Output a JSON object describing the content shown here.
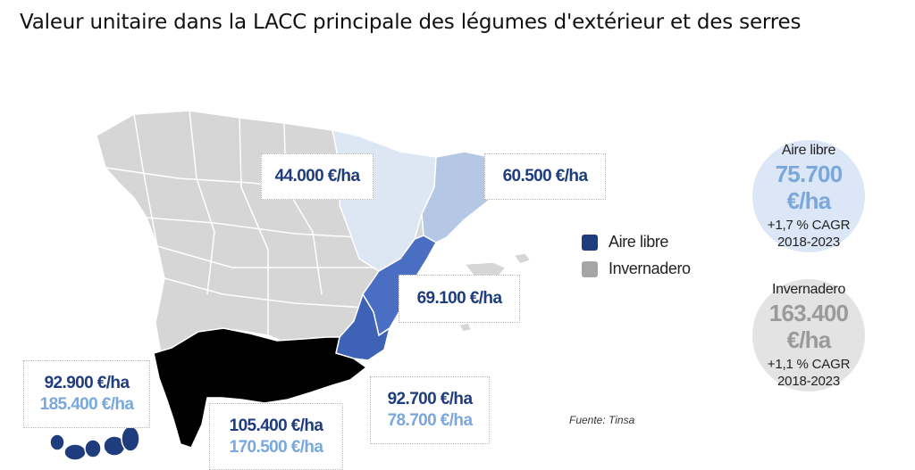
{
  "title": "Valeur unitaire dans la LACC principale des légumes d'extérieur et des serres",
  "colors": {
    "region_default": "#d6d6d6",
    "region_border": "#ffffff",
    "aragon": "#dde6f3",
    "catalonia": "#b4c8e6",
    "valencia": "#4a6fc2",
    "murcia": "#3d62b6",
    "andalusia": "#000000",
    "canary_islands": "#1f3c7c",
    "aire_libre": "#1f3c7c",
    "invernadero": "#a5a5a5",
    "value_dark": "#1f3c7c",
    "value_light": "#7aa7dc",
    "circle_aire_bg": "#dbe6f6",
    "circle_inv_bg": "#e3e3e3",
    "circle_aire_value": "#7aa7dc",
    "circle_inv_value": "#9a9a9a"
  },
  "labels": {
    "aragon": {
      "value": "44.000 €/ha"
    },
    "catalonia": {
      "value": "60.500 €/ha"
    },
    "valencia": {
      "value": "69.100 €/ha"
    },
    "murcia": {
      "aire_libre": "92.700 €/ha",
      "invernadero": "78.700 €/ha"
    },
    "andalusia": {
      "aire_libre": "105.400 €/ha",
      "invernadero": "170.500 €/ha"
    },
    "canarias": {
      "aire_libre": "92.900 €/ha",
      "invernadero": "185.400 €/ha"
    }
  },
  "legend": {
    "items": [
      {
        "label": "Aire libre",
        "color": "#1f3c7c"
      },
      {
        "label": "Invernadero",
        "color": "#a5a5a5"
      }
    ]
  },
  "summary": {
    "aire_libre": {
      "title": "Aire libre",
      "value": "75.700 €/ha",
      "growth": "+1,7 % CAGR",
      "years": "2018-2023"
    },
    "invernadero": {
      "title": "Invernadero",
      "value": "163.400 €/ha",
      "growth": "+1,1 % CAGR",
      "years": "2018-2023"
    }
  },
  "source": "Fuente: Tinsa"
}
